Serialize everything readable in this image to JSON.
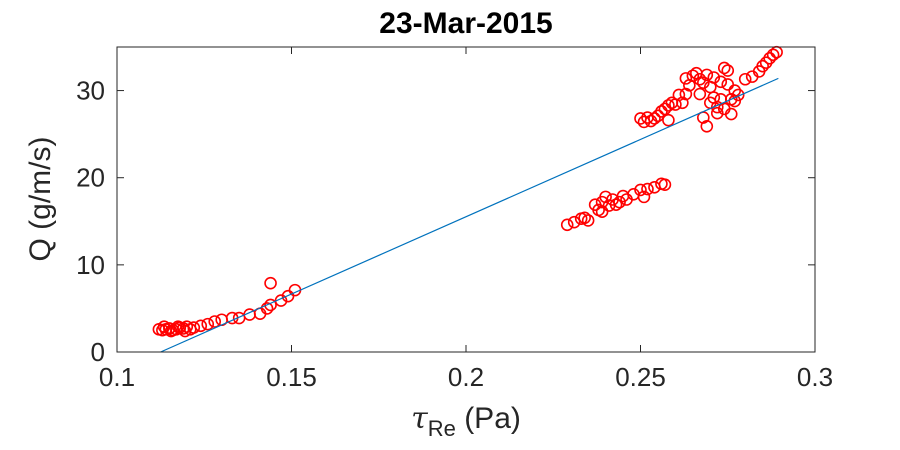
{
  "chart_data": {
    "type": "scatter",
    "title": "23-Mar-2015",
    "xlabel": {
      "symbol": "τ",
      "subscript": "Re",
      "unit": " (Pa)"
    },
    "ylabel": "Q (g/m/s)",
    "xlim": [
      0.1,
      0.3
    ],
    "ylim": [
      0,
      35
    ],
    "xticks": [
      0.1,
      0.15,
      0.2,
      0.25,
      0.3
    ],
    "xtick_labels": [
      "0.1",
      "0.15",
      "0.2",
      "0.25",
      "0.3"
    ],
    "yticks": [
      0,
      10,
      20,
      30
    ],
    "ytick_labels": [
      "0",
      "10",
      "20",
      "30"
    ],
    "grid": false,
    "legend": "none",
    "colors": {
      "points": "#ff0000",
      "fit": "#0072bd",
      "axes": "#262626"
    },
    "series": [
      {
        "kind": "markers",
        "marker": "circle-open",
        "points": [
          [
            0.112,
            2.6
          ],
          [
            0.113,
            2.5
          ],
          [
            0.114,
            2.6
          ],
          [
            0.115,
            2.7
          ],
          [
            0.116,
            2.5
          ],
          [
            0.117,
            2.6
          ],
          [
            0.118,
            2.8
          ],
          [
            0.119,
            2.7
          ],
          [
            0.12,
            2.9
          ],
          [
            0.121,
            2.6
          ],
          [
            0.122,
            2.8
          ],
          [
            0.1135,
            2.9
          ],
          [
            0.1155,
            2.4
          ],
          [
            0.1175,
            2.9
          ],
          [
            0.1195,
            2.4
          ],
          [
            0.124,
            3.0
          ],
          [
            0.126,
            3.2
          ],
          [
            0.128,
            3.5
          ],
          [
            0.13,
            3.7
          ],
          [
            0.133,
            3.9
          ],
          [
            0.135,
            3.9
          ],
          [
            0.138,
            4.3
          ],
          [
            0.141,
            4.4
          ],
          [
            0.143,
            5.0
          ],
          [
            0.144,
            5.4
          ],
          [
            0.144,
            7.9
          ],
          [
            0.147,
            5.9
          ],
          [
            0.149,
            6.4
          ],
          [
            0.151,
            7.1
          ],
          [
            0.229,
            14.6
          ],
          [
            0.231,
            14.9
          ],
          [
            0.233,
            15.3
          ],
          [
            0.234,
            15.4
          ],
          [
            0.235,
            15.1
          ],
          [
            0.237,
            16.9
          ],
          [
            0.238,
            16.3
          ],
          [
            0.239,
            17.2
          ],
          [
            0.239,
            16.1
          ],
          [
            0.24,
            17.8
          ],
          [
            0.241,
            16.8
          ],
          [
            0.242,
            17.5
          ],
          [
            0.243,
            16.9
          ],
          [
            0.244,
            17.2
          ],
          [
            0.245,
            17.9
          ],
          [
            0.246,
            17.5
          ],
          [
            0.248,
            18.1
          ],
          [
            0.25,
            18.6
          ],
          [
            0.251,
            17.8
          ],
          [
            0.252,
            18.7
          ],
          [
            0.254,
            18.9
          ],
          [
            0.256,
            19.3
          ],
          [
            0.257,
            19.2
          ],
          [
            0.25,
            26.8
          ],
          [
            0.251,
            26.4
          ],
          [
            0.252,
            26.9
          ],
          [
            0.253,
            26.5
          ],
          [
            0.254,
            26.8
          ],
          [
            0.255,
            27.1
          ],
          [
            0.256,
            27.6
          ],
          [
            0.257,
            27.9
          ],
          [
            0.258,
            26.6
          ],
          [
            0.258,
            28.3
          ],
          [
            0.259,
            28.6
          ],
          [
            0.26,
            28.4
          ],
          [
            0.261,
            29.5
          ],
          [
            0.262,
            28.6
          ],
          [
            0.263,
            29.6
          ],
          [
            0.263,
            31.4
          ],
          [
            0.264,
            30.6
          ],
          [
            0.265,
            31.7
          ],
          [
            0.266,
            32.0
          ],
          [
            0.267,
            31.3
          ],
          [
            0.267,
            29.6
          ],
          [
            0.268,
            30.9
          ],
          [
            0.268,
            26.9
          ],
          [
            0.269,
            31.8
          ],
          [
            0.269,
            25.9
          ],
          [
            0.27,
            30.4
          ],
          [
            0.27,
            28.6
          ],
          [
            0.271,
            31.5
          ],
          [
            0.271,
            29.2
          ],
          [
            0.272,
            27.4
          ],
          [
            0.272,
            28.1
          ],
          [
            0.273,
            31.0
          ],
          [
            0.273,
            29.0
          ],
          [
            0.274,
            32.6
          ],
          [
            0.274,
            27.9
          ],
          [
            0.275,
            32.3
          ],
          [
            0.275,
            30.7
          ],
          [
            0.276,
            29.0
          ],
          [
            0.276,
            27.3
          ],
          [
            0.277,
            28.8
          ],
          [
            0.277,
            30.0
          ],
          [
            0.278,
            29.5
          ],
          [
            0.28,
            31.3
          ],
          [
            0.282,
            31.6
          ],
          [
            0.284,
            32.2
          ],
          [
            0.285,
            32.8
          ],
          [
            0.286,
            33.2
          ],
          [
            0.287,
            33.7
          ],
          [
            0.288,
            34.1
          ],
          [
            0.289,
            34.4
          ]
        ]
      },
      {
        "kind": "fit-line",
        "points": [
          [
            0.1125,
            0.0
          ],
          [
            0.2895,
            31.4
          ]
        ]
      }
    ]
  }
}
